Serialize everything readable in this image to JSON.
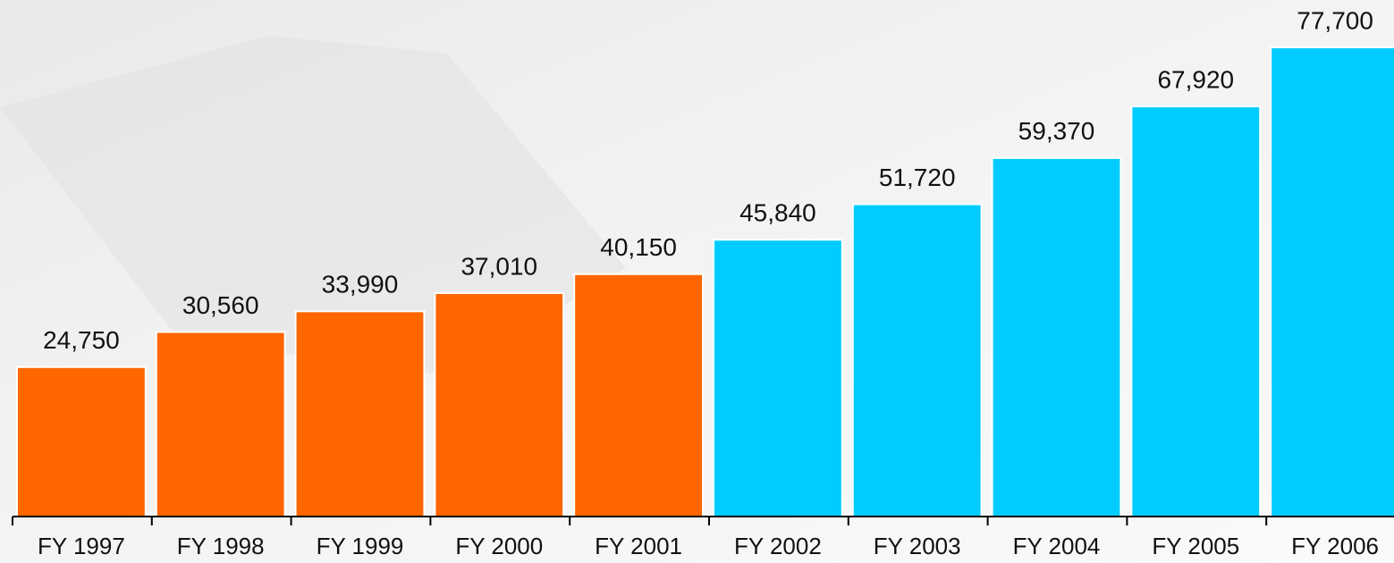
{
  "chart_data": {
    "type": "bar",
    "categories": [
      "FY 1997",
      "FY 1998",
      "FY 1999",
      "FY 2000",
      "FY 2001",
      "FY 2002",
      "FY 2003",
      "FY 2004",
      "FY 2005",
      "FY 2006"
    ],
    "values": [
      24750,
      30560,
      33990,
      37010,
      40150,
      45840,
      51720,
      59370,
      67920,
      77700
    ],
    "value_labels": [
      "24,750",
      "30,560",
      "33,990",
      "37,010",
      "40,150",
      "45,840",
      "51,720",
      "59,370",
      "67,920",
      "77,700"
    ],
    "colors": [
      "#ff6600",
      "#ff6600",
      "#ff6600",
      "#ff6600",
      "#ff6600",
      "#00ccff",
      "#00ccff",
      "#00ccff",
      "#00ccff",
      "#00ccff"
    ]
  }
}
